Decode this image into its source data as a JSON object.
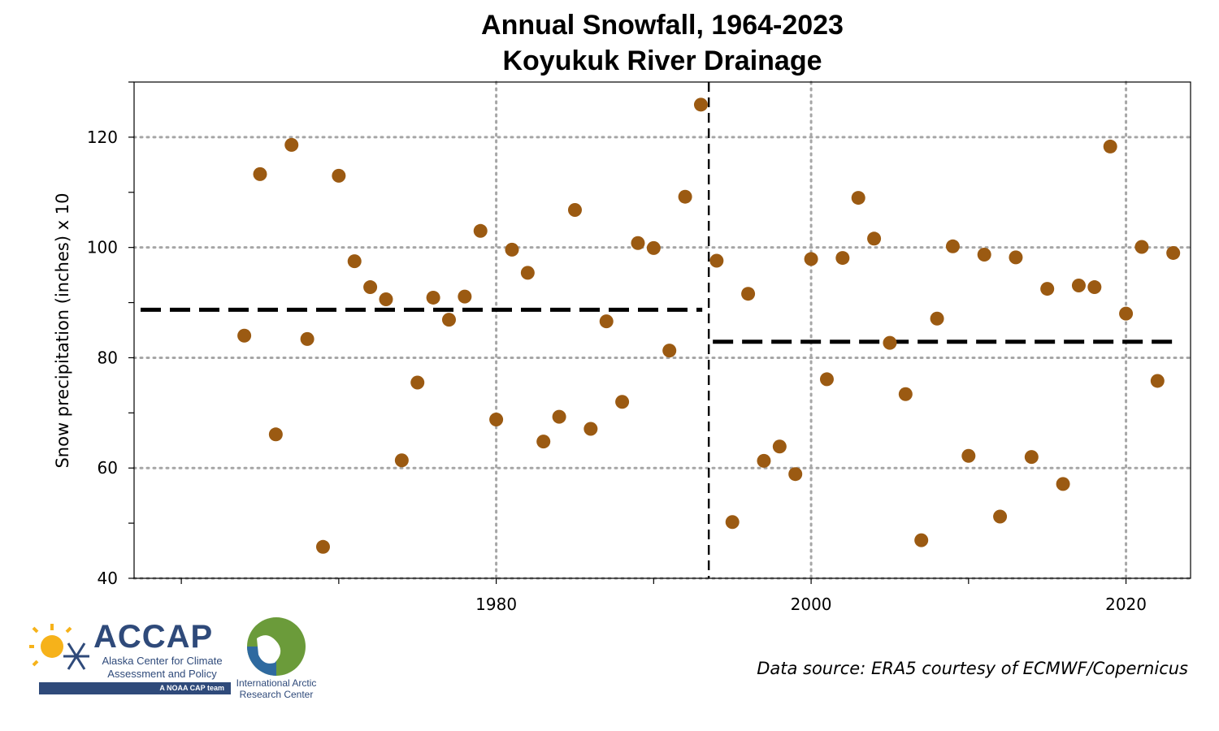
{
  "header": {
    "title_line1": "Annual Snowfall, 1964-2023",
    "title_line2": "Koyukuk River Drainage"
  },
  "footer": {
    "source": "Data source: ERA5 courtesy of ECMWF/Copernicus"
  },
  "logos": {
    "accap_name": "ACCAP",
    "accap_sub1": "Alaska Center for Climate",
    "accap_sub2": "Assessment and Policy",
    "accap_tag": "A NOAA CAP team",
    "iarc_line1": "International Arctic",
    "iarc_line2": "Research Center"
  },
  "colors": {
    "point": "#9b5a12",
    "mean_line": "#000000",
    "grid": "#a6a6a6",
    "accap_navy": "#2f4a7a"
  },
  "chart_data": {
    "type": "scatter",
    "title": "Annual Snowfall, 1964-2023\nKoyukuk River Drainage",
    "xlabel": "",
    "ylabel": "Snow precipitation (inches) x 10",
    "xlim": [
      1957,
      2024.1
    ],
    "ylim": [
      40,
      130
    ],
    "xticks": [
      1980,
      2000,
      2020
    ],
    "yticks": [
      40,
      60,
      80,
      100,
      120
    ],
    "grid": true,
    "x": [
      1964,
      1965,
      1966,
      1967,
      1968,
      1969,
      1970,
      1971,
      1972,
      1973,
      1974,
      1975,
      1976,
      1977,
      1978,
      1979,
      1980,
      1981,
      1982,
      1983,
      1984,
      1985,
      1986,
      1987,
      1988,
      1989,
      1990,
      1991,
      1992,
      1993,
      1994,
      1995,
      1996,
      1997,
      1998,
      1999,
      2000,
      2001,
      2002,
      2003,
      2004,
      2005,
      2006,
      2007,
      2008,
      2009,
      2010,
      2011,
      2012,
      2013,
      2014,
      2015,
      2016,
      2017,
      2018,
      2019,
      2020,
      2021,
      2022,
      2023
    ],
    "y": [
      84.0,
      113.3,
      66.1,
      118.6,
      83.4,
      45.7,
      113.0,
      97.5,
      92.8,
      90.6,
      61.4,
      75.5,
      90.9,
      86.9,
      91.1,
      103.0,
      68.8,
      99.6,
      95.4,
      64.8,
      69.3,
      106.8,
      67.1,
      86.6,
      72.0,
      100.8,
      99.9,
      81.3,
      109.2,
      125.9,
      97.6,
      50.2,
      91.6,
      61.3,
      63.9,
      58.9,
      97.9,
      76.1,
      98.1,
      109.0,
      101.6,
      82.7,
      73.4,
      46.9,
      87.1,
      100.2,
      62.2,
      98.7,
      51.2,
      98.2,
      62.0,
      92.5,
      57.1,
      93.1,
      92.8,
      118.3,
      88.0,
      100.1,
      75.8,
      99.0
    ],
    "breakpoint_year": 1993.5,
    "period_means": [
      {
        "from": 1964,
        "to": 1993,
        "mean": 88.7
      },
      {
        "from": 1994,
        "to": 2023,
        "mean": 82.9
      }
    ]
  }
}
